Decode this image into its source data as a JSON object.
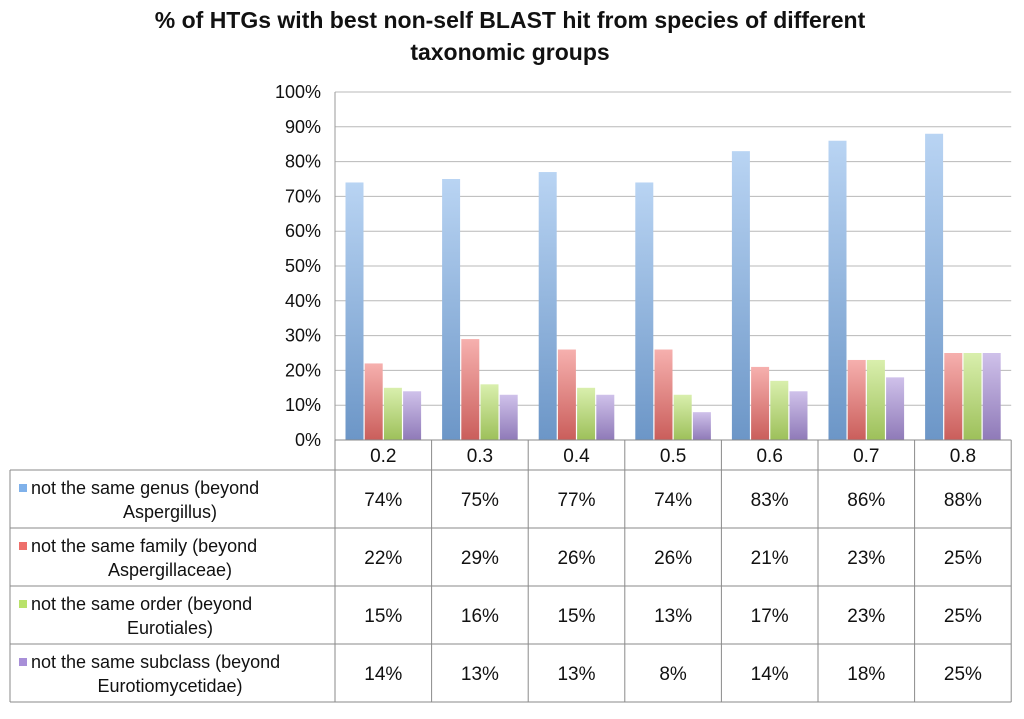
{
  "chart_data": {
    "type": "bar",
    "title": "% of HTGs with best non-self BLAST hit from species of different taxonomic groups",
    "title_lines": [
      "% of HTGs with best non-self BLAST hit from species of different",
      "taxonomic groups"
    ],
    "categories": [
      "0.2",
      "0.3",
      "0.4",
      "0.5",
      "0.6",
      "0.7",
      "0.8"
    ],
    "ylim": [
      0,
      100
    ],
    "yticks": [
      "0%",
      "10%",
      "20%",
      "30%",
      "40%",
      "50%",
      "60%",
      "70%",
      "80%",
      "90%",
      "100%"
    ],
    "grid": true,
    "legend_placement": "data-table-left",
    "series": [
      {
        "name": "not the same genus (beyond Aspergillus)",
        "label_lines": [
          "not the same genus (beyond",
          "Aspergillus)"
        ],
        "color": "#7fb1ea",
        "values": [
          74,
          75,
          77,
          74,
          83,
          86,
          88
        ],
        "value_labels": [
          "74%",
          "75%",
          "77%",
          "74%",
          "83%",
          "86%",
          "88%"
        ]
      },
      {
        "name": "not the same family (beyond Aspergillaceae)",
        "label_lines": [
          "not the same family (beyond",
          "Aspergillaceae)"
        ],
        "color": "#ee6f6b",
        "values": [
          22,
          29,
          26,
          26,
          21,
          23,
          25
        ],
        "value_labels": [
          "22%",
          "29%",
          "26%",
          "26%",
          "21%",
          "23%",
          "25%"
        ]
      },
      {
        "name": "not the same order (beyond Eurotiales)",
        "label_lines": [
          "not the same order (beyond",
          "Eurotiales)"
        ],
        "color": "#b9e26a",
        "values": [
          15,
          16,
          15,
          13,
          17,
          23,
          25
        ],
        "value_labels": [
          "15%",
          "16%",
          "15%",
          "13%",
          "17%",
          "23%",
          "25%"
        ]
      },
      {
        "name": "not the same subclass (beyond Eurotiomycetidae)",
        "label_lines": [
          "not the same subclass (beyond",
          "Eurotiomycetidae)"
        ],
        "color": "#a88fd8",
        "values": [
          14,
          13,
          13,
          8,
          14,
          18,
          25
        ],
        "value_labels": [
          "14%",
          "13%",
          "13%",
          "8%",
          "14%",
          "18%",
          "25%"
        ]
      }
    ]
  }
}
